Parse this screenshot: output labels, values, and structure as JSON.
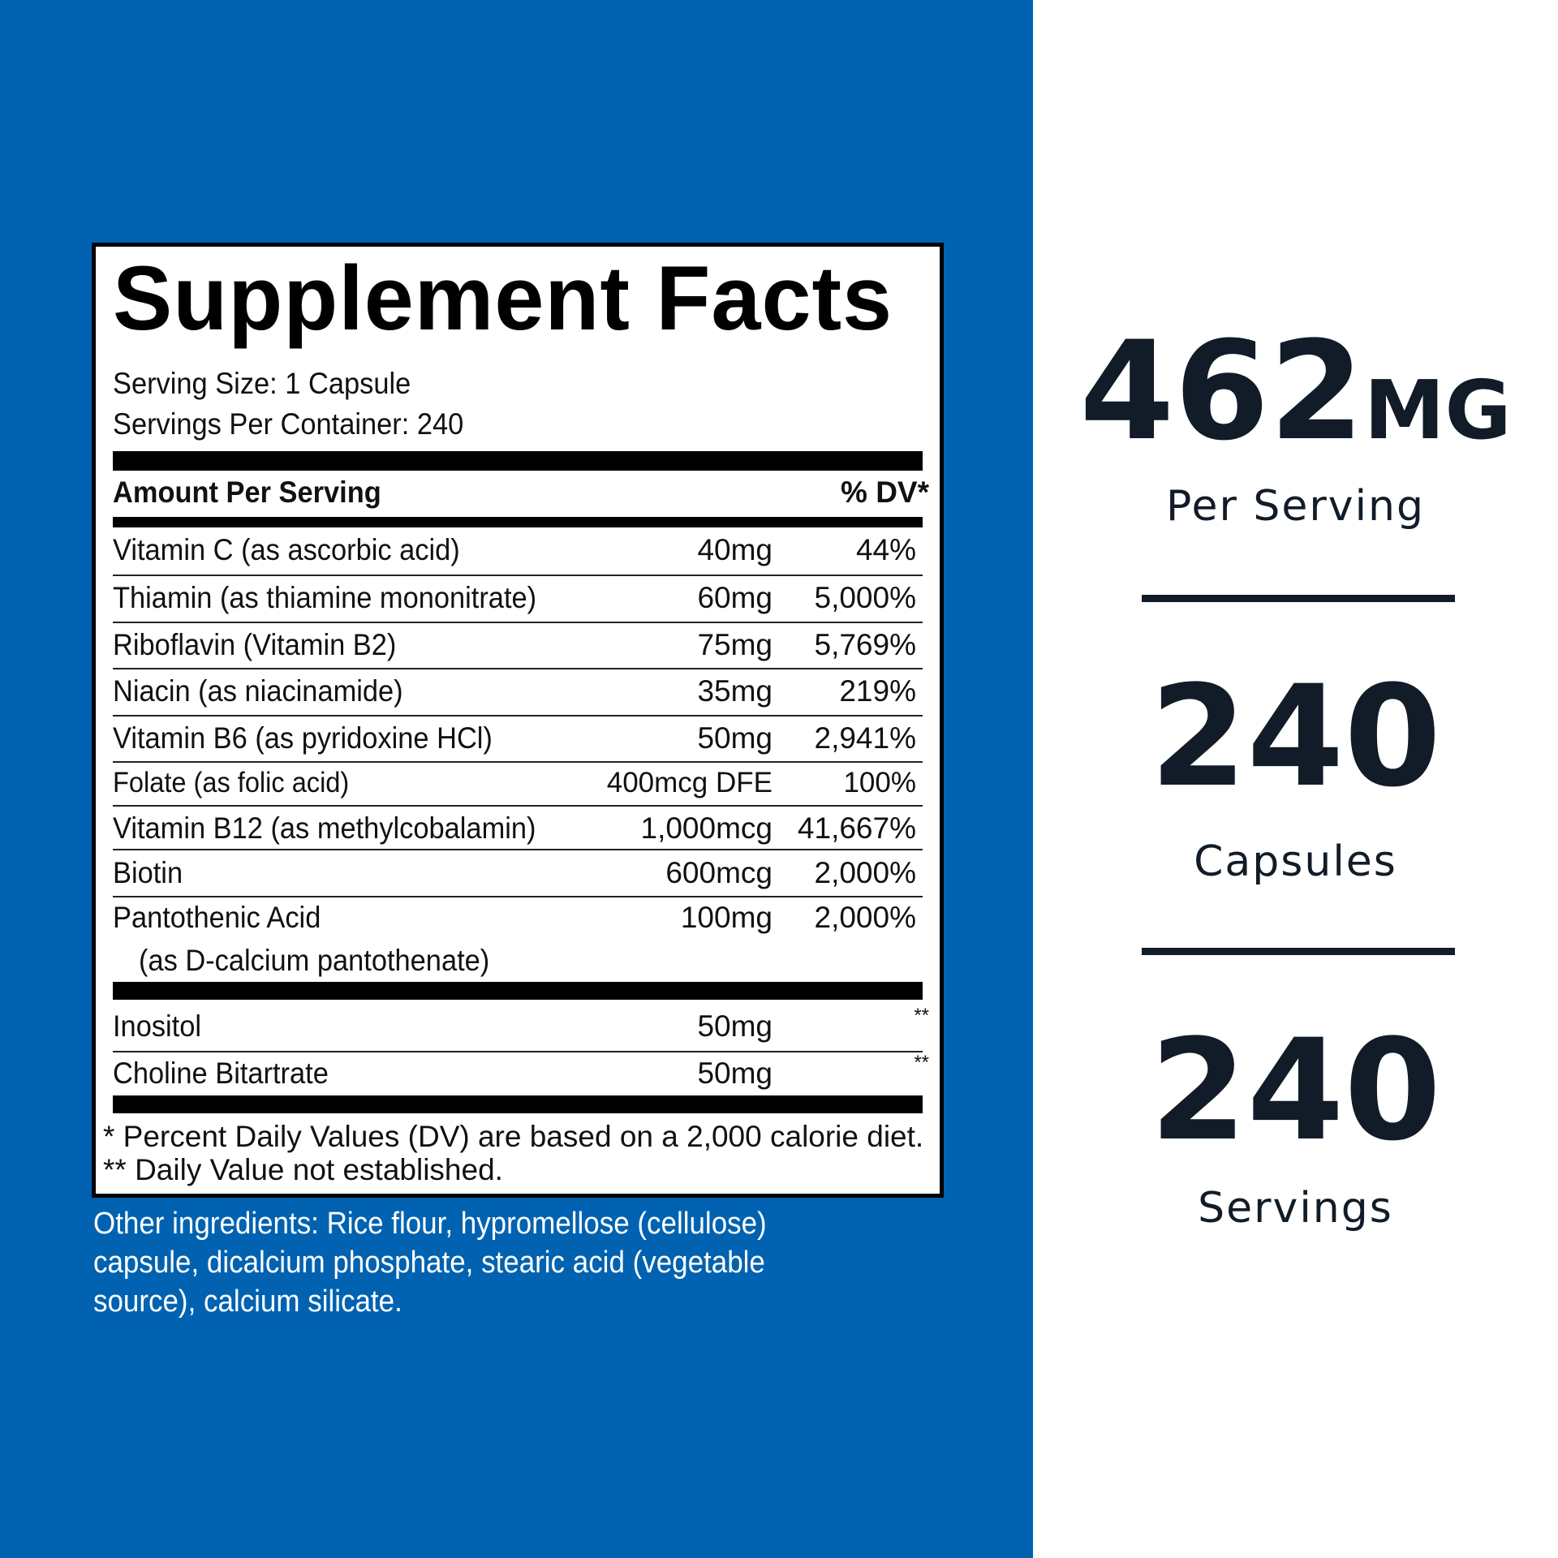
{
  "facts": {
    "title": "Supplement Facts",
    "serving_size": "Serving Size: 1 Capsule",
    "servings_per_container": "Servings Per Container: 240",
    "amount_header": "Amount Per Serving",
    "dv_header": "% DV*",
    "rows": [
      {
        "name": "Vitamin C (as ascorbic acid)",
        "amount": "40mg",
        "dv": "44%"
      },
      {
        "name": "Thiamin (as thiamine mononitrate)",
        "amount": "60mg",
        "dv": "5,000%"
      },
      {
        "name": "Riboflavin (Vitamin B2)",
        "amount": "75mg",
        "dv": "5,769%"
      },
      {
        "name": "Niacin (as niacinamide)",
        "amount": "35mg",
        "dv": "219%"
      },
      {
        "name": "Vitamin B6 (as pyridoxine HCl)",
        "amount": "50mg",
        "dv": "2,941%"
      },
      {
        "name": "Folate (as folic acid)",
        "amount": "400mcg DFE",
        "dv": "100%"
      },
      {
        "name": "Vitamin B12 (as methylcobalamin)",
        "amount": "1,000mcg",
        "dv": "41,667%"
      },
      {
        "name": "Biotin",
        "amount": "600mcg",
        "dv": "2,000%"
      },
      {
        "name": "Pantothenic Acid",
        "sub": "(as D-calcium pantothenate)",
        "amount": "100mg",
        "dv": "2,000%"
      }
    ],
    "other_rows": [
      {
        "name": "Inositol",
        "amount": "50mg",
        "dv": "**"
      },
      {
        "name": "Choline Bitartrate",
        "amount": "50mg",
        "dv": "**"
      }
    ],
    "footnote_1": "* Percent Daily Values (DV) are based on a 2,000 calorie diet.",
    "footnote_2": "** Daily Value not established."
  },
  "other_ingredients": "Other ingredients: Rice flour, hypromellose (cellulose) capsule, dicalcium phosphate, stearic acid (vegetable source), calcium silicate.",
  "stats": [
    {
      "value": "462",
      "unit": "MG",
      "label": "Per Serving"
    },
    {
      "value": "240",
      "label": "Capsules"
    },
    {
      "value": "240",
      "label": "Servings"
    }
  ],
  "colors": {
    "panel_blue": "#0062b1",
    "stat_text": "#111c28"
  }
}
